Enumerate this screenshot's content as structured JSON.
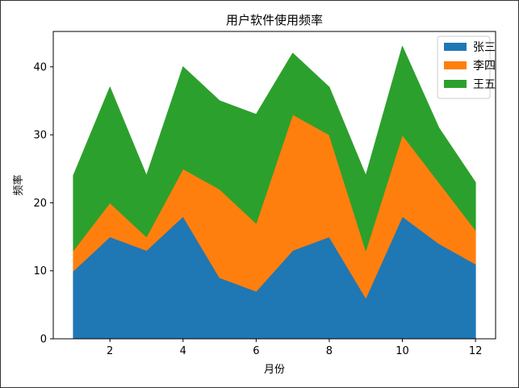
{
  "chart_data": {
    "type": "area",
    "stacked": true,
    "title": "用户软件使用频率",
    "xlabel": "月份",
    "ylabel": "频率",
    "x": [
      1,
      2,
      3,
      4,
      5,
      6,
      7,
      8,
      9,
      10,
      11,
      12
    ],
    "xticks": [
      2,
      4,
      6,
      8,
      10,
      12
    ],
    "yticks": [
      0,
      10,
      20,
      30,
      40
    ],
    "xlim": [
      0.45,
      12.55
    ],
    "ylim": [
      0,
      45.2
    ],
    "legend_position": "top-right",
    "series": [
      {
        "name": "张三",
        "color": "#1f77b4",
        "values": [
          10,
          15,
          13,
          18,
          9,
          7,
          13,
          15,
          6,
          18,
          14,
          11
        ]
      },
      {
        "name": "李四",
        "color": "#ff7f0e",
        "values": [
          3,
          5,
          2,
          7,
          13,
          10,
          20,
          15,
          7,
          12,
          9,
          5
        ]
      },
      {
        "name": "王五",
        "color": "#2ca02c",
        "values": [
          11,
          17,
          9,
          15,
          13,
          16,
          9,
          7,
          11,
          13,
          8,
          7
        ]
      }
    ]
  }
}
